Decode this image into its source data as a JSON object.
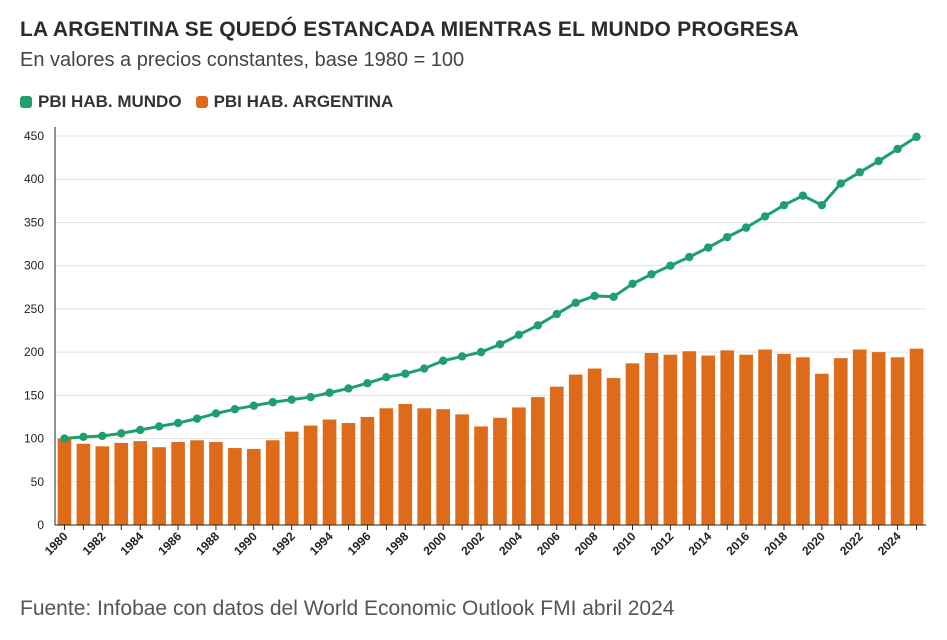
{
  "title": "LA ARGENTINA SE QUEDÓ ESTANCADA MIENTRAS EL MUNDO PROGRESA",
  "subtitle": "En valores a precios constantes, base 1980 = 100",
  "source": "Fuente: Infobae con datos del World Economic Outlook FMI abril 2024",
  "colors": {
    "world": "#1f9e6e",
    "argentina": "#dd6b1a",
    "grid": "#e3e3e3",
    "axis": "#222222"
  },
  "chart_data": {
    "type": "bar",
    "x": [
      1980,
      1981,
      1982,
      1983,
      1984,
      1985,
      1986,
      1987,
      1988,
      1989,
      1990,
      1991,
      1992,
      1993,
      1994,
      1995,
      1996,
      1997,
      1998,
      1999,
      2000,
      2001,
      2002,
      2003,
      2004,
      2005,
      2006,
      2007,
      2008,
      2009,
      2010,
      2011,
      2012,
      2013,
      2014,
      2015,
      2016,
      2017,
      2018,
      2019,
      2020,
      2021,
      2022,
      2023,
      2024,
      2025
    ],
    "xtick_labels": [
      "1980",
      "1982",
      "1984",
      "1986",
      "1988",
      "1990",
      "1992",
      "1994",
      "1996",
      "1998",
      "2000",
      "2002",
      "2004",
      "2006",
      "2008",
      "2010",
      "2012",
      "2014",
      "2016",
      "2018",
      "2020",
      "2022",
      "2024"
    ],
    "yticks": [
      0,
      50,
      100,
      150,
      200,
      250,
      300,
      350,
      400,
      450
    ],
    "ylim": [
      0,
      450
    ],
    "grid": true,
    "legend_position": "top-left",
    "series": [
      {
        "name": "PBI HAB. MUNDO",
        "type": "line",
        "color": "#1f9e6e",
        "values": [
          100,
          102,
          103,
          106,
          110,
          114,
          118,
          123,
          129,
          134,
          138,
          142,
          145,
          148,
          153,
          158,
          164,
          171,
          175,
          181,
          190,
          195,
          200,
          209,
          220,
          231,
          244,
          257,
          265,
          264,
          279,
          290,
          300,
          310,
          321,
          333,
          344,
          357,
          370,
          381,
          370,
          395,
          408,
          421,
          435,
          449
        ]
      },
      {
        "name": "PBI HAB. ARGENTINA",
        "type": "bar",
        "color": "#dd6b1a",
        "values": [
          100,
          94,
          91,
          95,
          97,
          90,
          96,
          98,
          96,
          89,
          88,
          98,
          108,
          115,
          122,
          118,
          125,
          135,
          140,
          135,
          134,
          128,
          114,
          124,
          136,
          148,
          160,
          174,
          181,
          170,
          187,
          199,
          197,
          201,
          196,
          202,
          197,
          203,
          198,
          194,
          175,
          193,
          203,
          200,
          194,
          204
        ]
      }
    ]
  }
}
